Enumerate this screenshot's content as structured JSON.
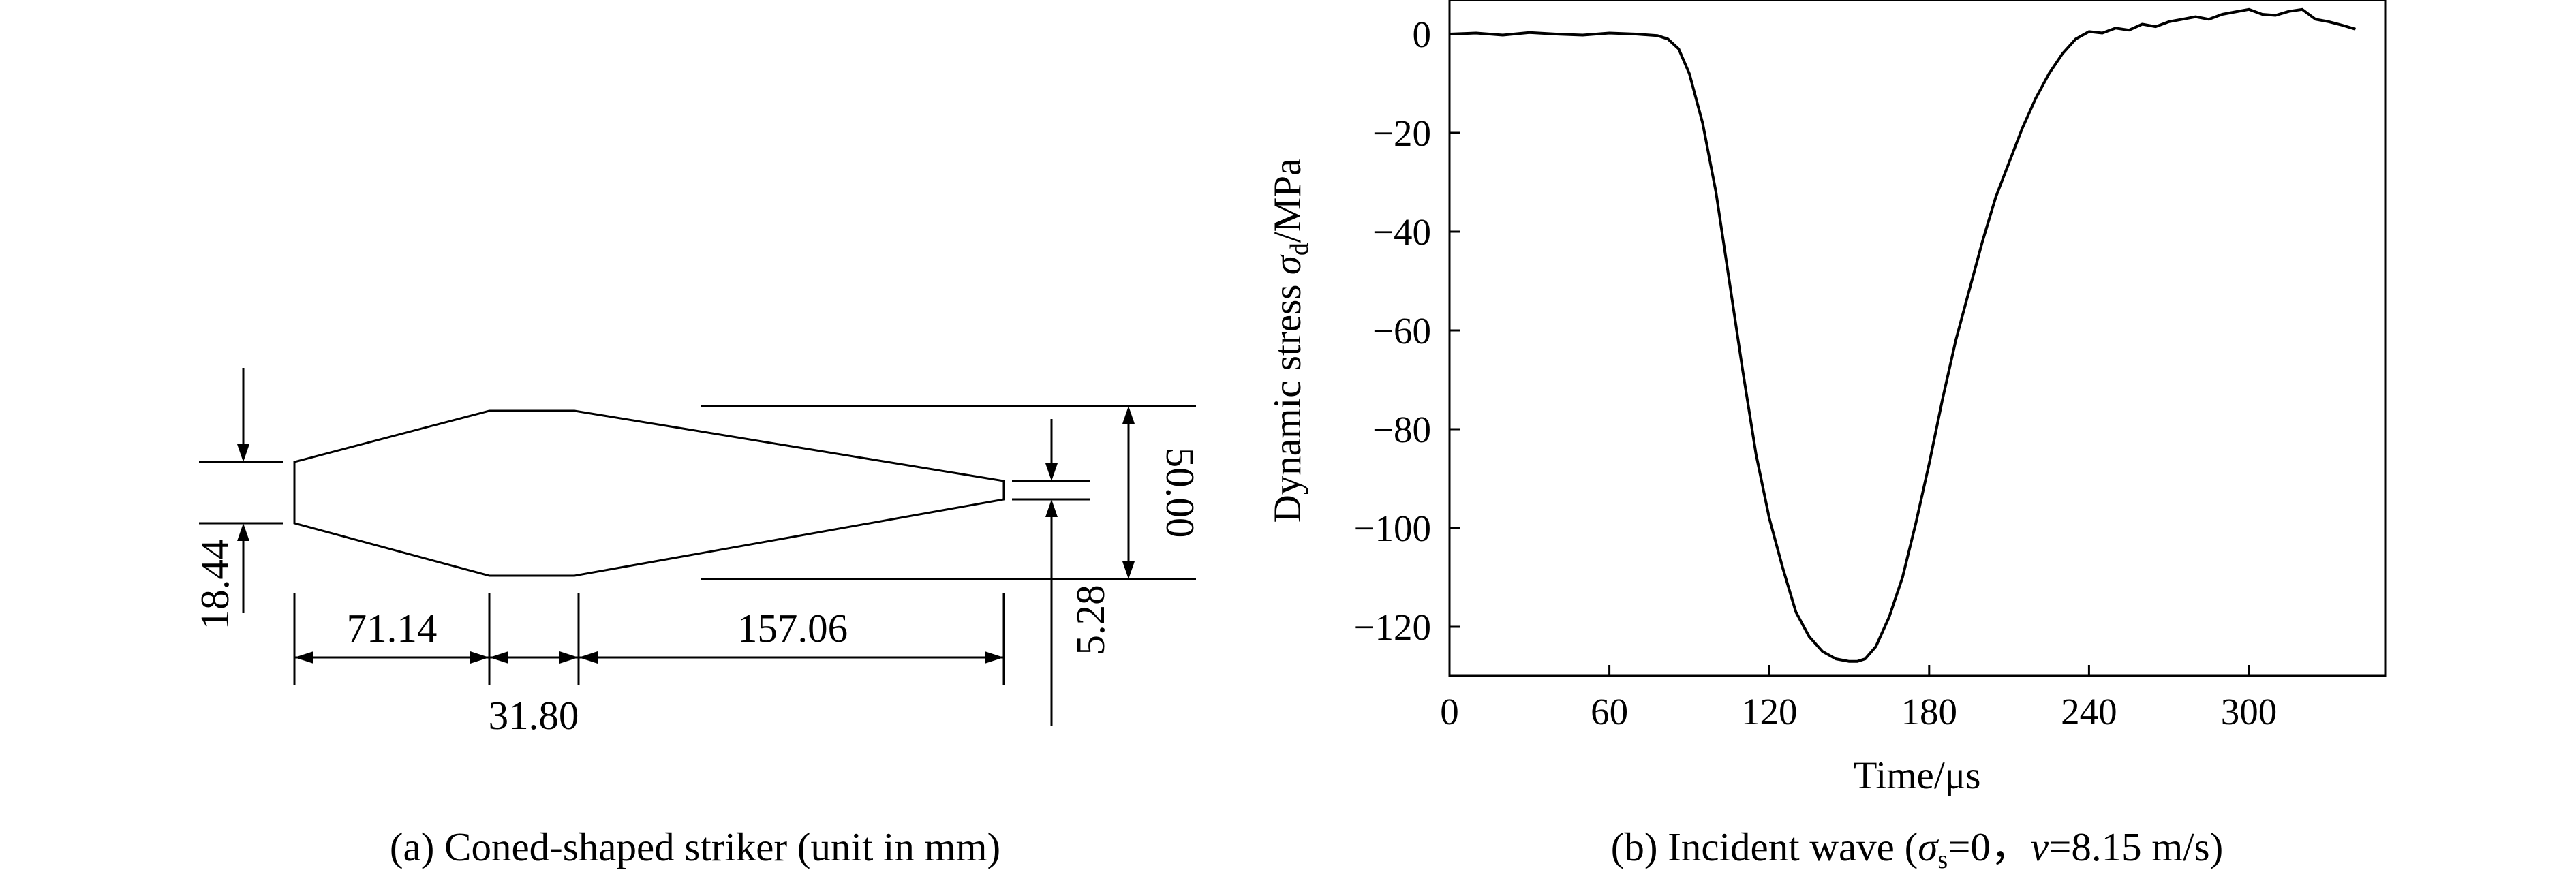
{
  "panel_a": {
    "caption": "(a) Coned-shaped striker (unit in mm)",
    "dimensions": {
      "small_diameter": "18.44",
      "length_front_cone": "71.14",
      "length_cylinder": "31.80",
      "length_rear_cone": "157.06",
      "tip_diameter": "5.28",
      "large_diameter": "50.00"
    }
  },
  "panel_b": {
    "caption_prefix": "(b) Incident wave (",
    "caption_sigma": "σ",
    "caption_sigma_sub": "s",
    "caption_mid": "=0，",
    "caption_v": "v",
    "caption_suffix": "=8.15 m/s)",
    "ylabel_prefix": "Dynamic stress ",
    "ylabel_sigma": "σ",
    "ylabel_sub": "d",
    "ylabel_suffix": "/MPa",
    "xlabel": "Time/μs"
  },
  "chart_data": {
    "type": "line",
    "xlabel": "Time/μs",
    "ylabel": "Dynamic stress σd/MPa",
    "xlim": [
      0,
      340
    ],
    "ylim": [
      -130,
      6
    ],
    "xticks": [
      0,
      60,
      120,
      180,
      240,
      300
    ],
    "xtick_labels": [
      "0",
      "60",
      "120",
      "180",
      "240",
      "300"
    ],
    "yticks": [
      0,
      -20,
      -40,
      -60,
      -80,
      -100,
      -120
    ],
    "ytick_labels": [
      "0",
      "−20",
      "−40",
      "−60",
      "−80",
      "−100",
      "−120"
    ],
    "grid": false,
    "legend": "none",
    "series": [
      {
        "x": [
          0,
          10,
          20,
          30,
          40,
          50,
          60,
          70,
          78,
          82,
          86,
          90,
          95,
          100,
          105,
          110,
          115,
          120,
          125,
          130,
          135,
          140,
          145,
          150,
          153,
          156,
          160,
          165,
          170,
          175,
          180,
          185,
          190,
          195,
          200,
          205,
          210,
          215,
          220,
          225,
          230,
          235,
          240,
          245,
          250,
          255,
          260,
          265,
          270,
          275,
          280,
          285,
          290,
          295,
          300,
          305,
          310,
          315,
          320,
          325,
          330,
          335,
          340
        ],
        "y": [
          0,
          0.2,
          -0.2,
          0.3,
          0,
          -0.2,
          0.2,
          0,
          -0.3,
          -1,
          -3,
          -8,
          -18,
          -32,
          -50,
          -68,
          -85,
          -98,
          -108,
          -117,
          -122,
          -125,
          -126.5,
          -127,
          -127,
          -126.5,
          -124,
          -118,
          -110,
          -99,
          -87,
          -74,
          -62,
          -52,
          -42,
          -33,
          -26,
          -19,
          -13,
          -8,
          -4,
          -1,
          0.5,
          0.2,
          1.2,
          0.8,
          2,
          1.5,
          2.5,
          3,
          3.5,
          3,
          4,
          4.5,
          5,
          4,
          3.8,
          4.6,
          5,
          3,
          2.5,
          1.8,
          1
        ]
      }
    ]
  }
}
